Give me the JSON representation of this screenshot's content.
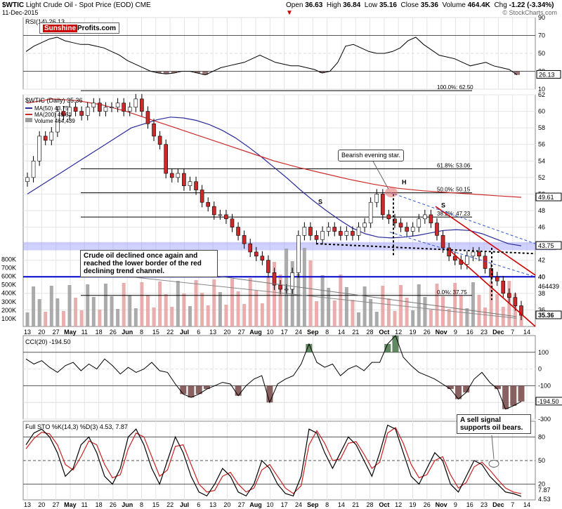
{
  "header": {
    "symbol": "$WTIC",
    "name": "Light Crude Oil - Spot Price (EOD)",
    "exchange": "CME",
    "date": "11-Dec-2015",
    "open_label": "Open",
    "open": "36.63",
    "high_label": "High",
    "high": "36.84",
    "low_label": "Low",
    "low": "35.16",
    "close_label": "Close",
    "close": "35.36",
    "volume_label": "Volume",
    "volume": "464.4K",
    "chg_label": "Chg",
    "chg": "-1.22 (-3.34%)",
    "credit": "© StockCharts.com"
  },
  "logo": {
    "part1": "Sunshine",
    "part2": "Profits.com"
  },
  "colors": {
    "price_line": "#000000",
    "ma50": "#2b2b9c",
    "ma200": "#cc2a2a",
    "down_candle": "#cc2a2a",
    "up_candle": "#ffffff",
    "volume_up": "#9c9c9c",
    "volume_down": "#e6a0a0",
    "channel": "#cc0000",
    "horizontal_support": "#0000cc",
    "highlight_band": "#9999ff",
    "cci_fill": "#6b3a3a",
    "cci_fill_up": "#3a6b3a"
  },
  "annotations": {
    "callout_main": "Crude oil declined once again and reached the lower border of the red declining trend channel.",
    "callout_main_l1": "Crude oil declined once again and",
    "callout_main_l2": "reached the lower border of the red",
    "callout_main_l3": "declining trend channel.",
    "callout_sto_l1": "A sell signal",
    "callout_sto_l2": "supports oil bears.",
    "evening_star": "Bearish evening star.",
    "head": "H",
    "shoulder_left": "S",
    "shoulder_right": "S"
  },
  "chart_data": [
    {
      "panel": "rsi",
      "type": "line",
      "title": "RSI(14) 26.13",
      "legend": [
        "RSI(14) 26.13"
      ],
      "ylim": [
        10,
        90
      ],
      "y_ticks": [
        90,
        70,
        50,
        30,
        10
      ],
      "last_value": "26.13",
      "values": [
        52,
        58,
        62,
        66,
        68,
        64,
        62,
        60,
        60,
        58,
        56,
        52,
        48,
        42,
        38,
        34,
        30,
        28,
        27,
        28,
        30,
        30,
        28,
        26,
        30,
        34,
        36,
        38,
        40,
        44,
        48,
        44,
        40,
        38,
        36,
        36,
        34,
        32,
        28,
        30,
        40,
        58,
        60,
        56,
        52,
        50,
        50,
        52,
        56,
        64,
        68,
        60,
        54,
        48,
        46,
        44,
        40,
        36,
        38,
        40,
        36,
        34,
        32,
        26
      ]
    },
    {
      "panel": "price",
      "type": "candlestick",
      "legend": [
        "$WTIC (Daily) 35.36",
        "MA(50) 43.75",
        "MA(200) 49.61",
        "Volume 464,439"
      ],
      "ylim": [
        34,
        62
      ],
      "y_ticks": [
        62,
        60,
        58,
        56,
        54,
        52,
        50,
        48,
        46,
        44,
        42,
        40,
        38,
        36
      ],
      "x_ticks": [
        "13",
        "20",
        "27",
        "May",
        "11",
        "18",
        "26",
        "Jun",
        "8",
        "15",
        "22",
        "Jul",
        "6",
        "13",
        "20",
        "27",
        "Aug",
        "10",
        "17",
        "24",
        "Sep",
        "8",
        "14",
        "21",
        "28",
        "Oct",
        "12",
        "19",
        "26",
        "Nov",
        "9",
        "16",
        "23",
        "Dec",
        "7",
        "14"
      ],
      "fibonacci": [
        {
          "label": "100.0%: 62.50",
          "value": 62.5
        },
        {
          "label": "61.8%: 53.06",
          "value": 53.06
        },
        {
          "label": "50.0%: 50.15",
          "value": 50.15
        },
        {
          "label": "38.2%: 47.23",
          "value": 47.23
        },
        {
          "label": "0.0%: 37.75",
          "value": 37.75
        }
      ],
      "price_labels": [
        "49.61",
        "43.75",
        "40",
        "464439",
        "35.36"
      ],
      "volume_ticks": [
        "800K",
        "700K",
        "600K",
        "500K",
        "400K",
        "300K",
        "200K",
        "100K"
      ],
      "close": [
        52.0,
        54.0,
        57.0,
        56.5,
        57.5,
        60.0,
        59.5,
        60.5,
        60.0,
        59.5,
        60.5,
        61.0,
        60.0,
        60.5,
        60.5,
        61.0,
        60.0,
        60.5,
        61.5,
        60.0,
        58.5,
        57.0,
        56.0,
        52.5,
        52.0,
        52.5,
        51.0,
        51.5,
        50.5,
        49.0,
        48.5,
        47.5,
        47.5,
        47.0,
        46.0,
        45.0,
        44.0,
        43.0,
        42.5,
        42.0,
        40.5,
        39.0,
        38.5,
        38.5,
        40.5,
        45.0,
        46.0,
        45.0,
        44.5,
        45.5,
        46.0,
        45.5,
        45.0,
        45.5,
        45.0,
        46.0,
        46.5,
        49.0,
        50.0,
        47.5,
        47.0,
        46.5,
        46.0,
        45.5,
        46.0,
        47.0,
        47.5,
        46.5,
        45.0,
        43.5,
        42.5,
        42.0,
        41.5,
        42.5,
        43.0,
        42.5,
        41.0,
        40.0,
        39.5,
        38.0,
        37.5,
        36.5,
        35.36
      ],
      "ma50": [
        50,
        51,
        52,
        53,
        54,
        55,
        56,
        57,
        58,
        58.5,
        59,
        59.3,
        59.2,
        58.9,
        58.4,
        57.7,
        56.8,
        55.7,
        54.5,
        53.2,
        51.9,
        50.5,
        49.2,
        48.0,
        46.9,
        45.9,
        45.2,
        44.8,
        44.7,
        44.8,
        45.0,
        45.3,
        45.6,
        45.7,
        45.6,
        45.2,
        44.6,
        44.0,
        43.75
      ],
      "ma200": [
        61.0,
        61.5,
        61.3,
        60.8,
        60.0,
        59.0,
        58.0,
        57.0,
        56.0,
        55.0,
        54.0,
        53.2,
        52.5,
        51.8,
        51.2,
        50.7,
        50.4,
        50.2,
        50.0,
        49.8,
        49.61
      ]
    },
    {
      "panel": "cci",
      "type": "line",
      "title": "CCI(20) -194.50",
      "legend": [
        "CCI(20) -194.50"
      ],
      "ylim": [
        -300,
        200
      ],
      "y_ticks": [
        100,
        0,
        -100,
        -200,
        -300
      ],
      "last_value": "-194.50",
      "values": [
        60,
        30,
        50,
        10,
        -20,
        20,
        40,
        -10,
        30,
        0,
        60,
        20,
        -30,
        10,
        -20,
        0,
        40,
        -10,
        -20,
        -90,
        -150,
        -170,
        -150,
        -120,
        -100,
        -80,
        -90,
        -160,
        -100,
        -60,
        -40,
        -200,
        -90,
        -60,
        -40,
        30,
        150,
        40,
        10,
        30,
        -40,
        0,
        20,
        -10,
        40,
        40,
        150,
        200,
        70,
        20,
        -20,
        -40,
        -60,
        -90,
        -120,
        -180,
        -140,
        -60,
        -20,
        -80,
        -120,
        -240,
        -220,
        -194.5
      ]
    },
    {
      "panel": "stochastic",
      "type": "line",
      "title": "Full STO %K(14,3) %D(3) 4.53, 7.87",
      "legend": [
        "Full STO %K(14,3) %D(3) 4.53, 7.87"
      ],
      "ylim": [
        0,
        100
      ],
      "y_ticks": [
        80,
        50,
        20
      ],
      "k_last": "4.53",
      "d_last": "7.87",
      "k_values": [
        70,
        85,
        90,
        80,
        60,
        30,
        40,
        70,
        80,
        60,
        30,
        20,
        40,
        80,
        90,
        70,
        40,
        20,
        50,
        80,
        60,
        30,
        10,
        5,
        20,
        40,
        30,
        10,
        5,
        20,
        50,
        40,
        20,
        8,
        5,
        30,
        90,
        85,
        60,
        40,
        60,
        80,
        70,
        50,
        30,
        60,
        95,
        90,
        60,
        30,
        20,
        40,
        60,
        50,
        20,
        10,
        30,
        50,
        45,
        30,
        20,
        10,
        8,
        4.53
      ],
      "d_values": [
        65,
        78,
        86,
        84,
        70,
        45,
        38,
        55,
        75,
        70,
        45,
        28,
        32,
        65,
        85,
        80,
        55,
        30,
        38,
        68,
        70,
        45,
        20,
        10,
        12,
        30,
        35,
        20,
        10,
        15,
        38,
        45,
        30,
        15,
        8,
        18,
        70,
        88,
        72,
        50,
        52,
        72,
        74,
        58,
        40,
        48,
        85,
        92,
        72,
        45,
        28,
        32,
        50,
        55,
        32,
        15,
        22,
        42,
        48,
        38,
        26,
        15,
        10,
        7.87
      ]
    }
  ]
}
